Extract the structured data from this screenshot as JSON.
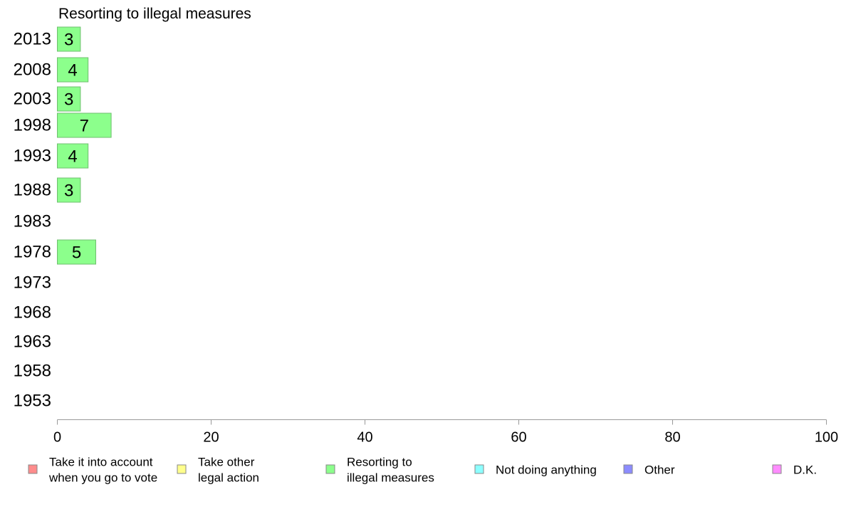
{
  "chart_data": {
    "type": "bar",
    "orientation": "horizontal",
    "title": "Resorting to illegal measures",
    "categories": [
      "2013",
      "2008",
      "2003",
      "1998",
      "1993",
      "1988",
      "1983",
      "1978",
      "1973",
      "1968",
      "1963",
      "1958",
      "1953"
    ],
    "series": [
      {
        "name": "Resorting to illegal measures",
        "color": "#8cff8c",
        "values": [
          3,
          4,
          3,
          7,
          4,
          3,
          null,
          5,
          null,
          null,
          null,
          null,
          null
        ],
        "labels": [
          "3",
          "4",
          "3",
          "7",
          "4",
          "3",
          "",
          "5",
          "",
          "",
          "",
          "",
          ""
        ]
      }
    ],
    "xlim": [
      0,
      100
    ],
    "xticks": [
      "0",
      "20",
      "40",
      "60",
      "80",
      "100"
    ],
    "grid": false,
    "legend": {
      "placement": "bottom",
      "entries": [
        {
          "lines": [
            "Take it into account",
            "when you go to vote"
          ],
          "color": "#ff8c8c"
        },
        {
          "lines": [
            "Take other",
            "legal action"
          ],
          "color": "#ffff8c"
        },
        {
          "lines": [
            "Resorting to",
            "illegal measures"
          ],
          "color": "#8cff8c"
        },
        {
          "lines": [
            "Not doing anything"
          ],
          "color": "#8cffff"
        },
        {
          "lines": [
            "Other"
          ],
          "color": "#8c8cff"
        },
        {
          "lines": [
            "D.K."
          ],
          "color": "#ff8cff"
        }
      ]
    }
  }
}
